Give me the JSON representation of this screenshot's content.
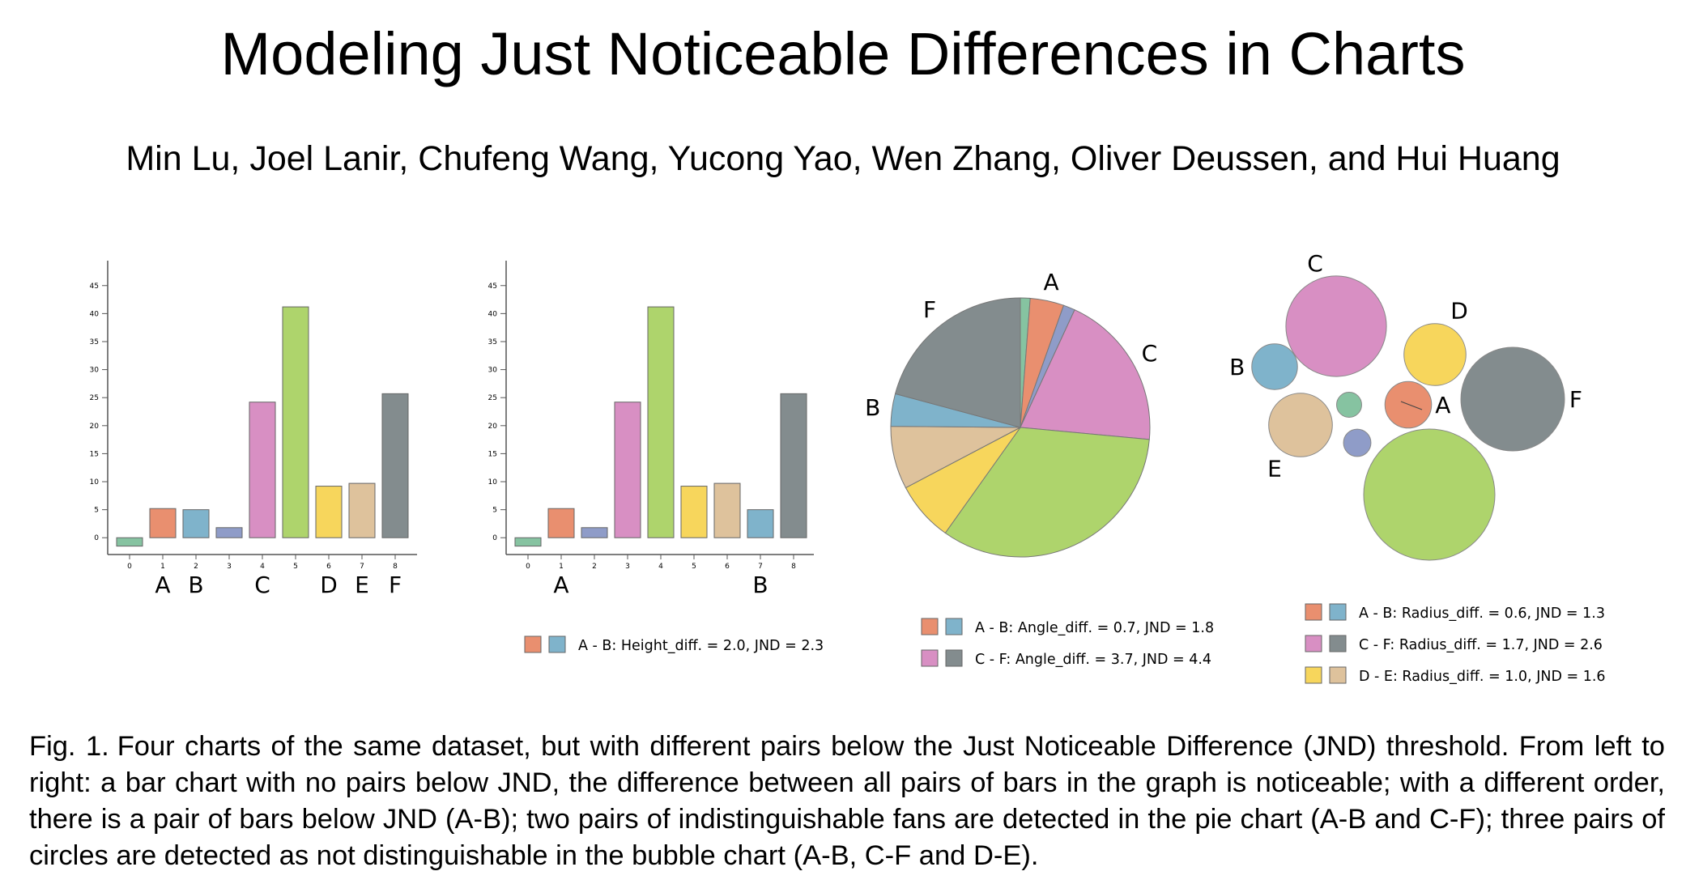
{
  "paper": {
    "title": "Modeling Just Noticeable Differences in Charts",
    "authors": "Min Lu, Joel Lanir, Chufeng Wang, Yucong Yao, Wen Zhang, Oliver Deussen, and Hui Huang"
  },
  "caption": {
    "label": "Fig. 1.",
    "text": "Four charts of the same dataset, but with different pairs below the Just Noticeable Difference (JND) threshold. From left to right: a bar chart with no pairs below JND, the difference between all pairs of bars in the graph is noticeable; with a different order, there is a pair of bars below JND (A-B); two pairs of indistinguishable fans are detected in the pie chart (A-B and C-F); three pairs of circles are detected as not distinguishable in the bubble chart (A-B, C-F and D-E)."
  },
  "colors": {
    "green": "#86c3a1",
    "orange": "#e98f6f",
    "blue": "#7fb3cb",
    "purple": "#8f9cc8",
    "pink": "#d88fc3",
    "lime": "#aed46c",
    "yellow": "#f7d65c",
    "tan": "#dec29c",
    "gray": "#838c8e"
  },
  "chart_data": [
    {
      "type": "bar",
      "categories": [
        "0",
        "1",
        "2",
        "3",
        "4",
        "5",
        "6",
        "7",
        "8"
      ],
      "values": [
        -1.5,
        5.2,
        5.0,
        1.8,
        24.2,
        41.2,
        9.2,
        9.7,
        25.7
      ],
      "colors": [
        "#86c3a1",
        "#e98f6f",
        "#7fb3cb",
        "#8f9cc8",
        "#d88fc3",
        "#aed46c",
        "#f7d65c",
        "#dec29c",
        "#838c8e"
      ],
      "bar_labels": [
        "",
        "A",
        "B",
        "",
        "C",
        "",
        "D",
        "E",
        "F"
      ],
      "y_ticks": [
        0,
        5,
        10,
        15,
        20,
        25,
        30,
        35,
        40,
        45
      ],
      "ylim": [
        -3,
        48
      ],
      "legend": []
    },
    {
      "type": "bar",
      "categories": [
        "0",
        "1",
        "2",
        "3",
        "4",
        "5",
        "6",
        "7",
        "8"
      ],
      "values": [
        -1.5,
        5.2,
        1.8,
        24.2,
        41.2,
        9.2,
        9.7,
        5.0,
        25.7
      ],
      "colors": [
        "#86c3a1",
        "#e98f6f",
        "#8f9cc8",
        "#d88fc3",
        "#aed46c",
        "#f7d65c",
        "#dec29c",
        "#7fb3cb",
        "#838c8e"
      ],
      "bar_labels": [
        "",
        "A",
        "",
        "",
        "",
        "",
        "",
        "B",
        ""
      ],
      "y_ticks": [
        0,
        5,
        10,
        15,
        20,
        25,
        30,
        35,
        40,
        45
      ],
      "ylim": [
        -3,
        48
      ],
      "legend": [
        {
          "swatches": [
            "#e98f6f",
            "#7fb3cb"
          ],
          "text": "A - B: Height_diff. = 2.0, JND = 2.3"
        }
      ]
    },
    {
      "type": "pie",
      "slices": [
        {
          "value": 1.5,
          "color": "#86c3a1",
          "label": ""
        },
        {
          "value": 5.2,
          "color": "#e98f6f",
          "label": "A"
        },
        {
          "value": 1.8,
          "color": "#8f9cc8",
          "label": ""
        },
        {
          "value": 24.2,
          "color": "#d88fc3",
          "label": "C"
        },
        {
          "value": 41.2,
          "color": "#aed46c",
          "label": ""
        },
        {
          "value": 9.2,
          "color": "#f7d65c",
          "label": ""
        },
        {
          "value": 9.7,
          "color": "#dec29c",
          "label": ""
        },
        {
          "value": 5.0,
          "color": "#7fb3cb",
          "label": "B"
        },
        {
          "value": 25.7,
          "color": "#838c8e",
          "label": "F"
        }
      ],
      "legend": [
        {
          "swatches": [
            "#e98f6f",
            "#7fb3cb"
          ],
          "text": "A - B: Angle_diff. = 0.7, JND = 1.8"
        },
        {
          "swatches": [
            "#d88fc3",
            "#838c8e"
          ],
          "text": "C - F: Angle_diff. = 3.7, JND = 4.4"
        }
      ]
    },
    {
      "type": "bubble",
      "bubbles": [
        {
          "value": 1.5,
          "color": "#86c3a1",
          "label": ""
        },
        {
          "value": 5.2,
          "color": "#e98f6f",
          "label": "A"
        },
        {
          "value": 5.0,
          "color": "#7fb3cb",
          "label": "B"
        },
        {
          "value": 1.8,
          "color": "#8f9cc8",
          "label": ""
        },
        {
          "value": 24.2,
          "color": "#d88fc3",
          "label": "C"
        },
        {
          "value": 41.2,
          "color": "#aed46c",
          "label": ""
        },
        {
          "value": 9.2,
          "color": "#f7d65c",
          "label": "D"
        },
        {
          "value": 9.7,
          "color": "#dec29c",
          "label": "E"
        },
        {
          "value": 25.7,
          "color": "#838c8e",
          "label": "F"
        }
      ],
      "legend": [
        {
          "swatches": [
            "#e98f6f",
            "#7fb3cb"
          ],
          "text": "A - B: Radius_diff. = 0.6, JND = 1.3"
        },
        {
          "swatches": [
            "#d88fc3",
            "#838c8e"
          ],
          "text": "C - F: Radius_diff. = 1.7, JND = 2.6"
        },
        {
          "swatches": [
            "#f7d65c",
            "#dec29c"
          ],
          "text": "D - E: Radius_diff. = 1.0, JND = 1.6"
        }
      ]
    }
  ]
}
